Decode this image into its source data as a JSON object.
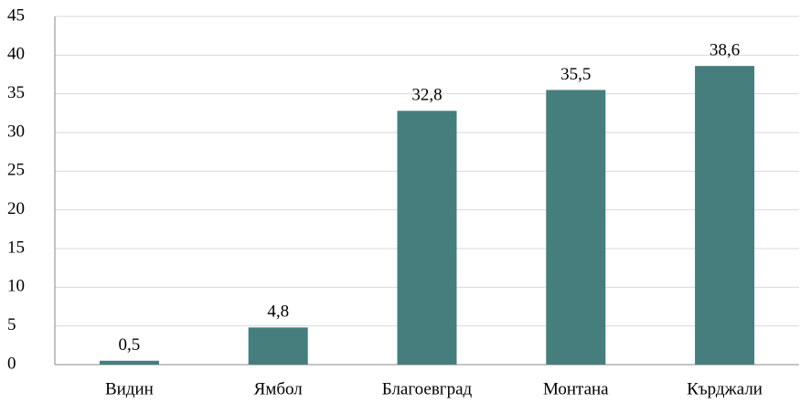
{
  "chart_data": {
    "type": "bar",
    "categories": [
      "Видин",
      "Ямбол",
      "Благоевград",
      "Монтана",
      "Кърджали"
    ],
    "values": [
      0.5,
      4.8,
      32.8,
      35.5,
      38.6
    ],
    "value_labels": [
      "0,5",
      "4,8",
      "32,8",
      "35,5",
      "38,6"
    ],
    "color": "#467d7d",
    "ylim": [
      0,
      45
    ],
    "yticks": [
      0,
      5,
      10,
      15,
      20,
      25,
      30,
      35,
      40,
      45
    ],
    "grid": true
  }
}
